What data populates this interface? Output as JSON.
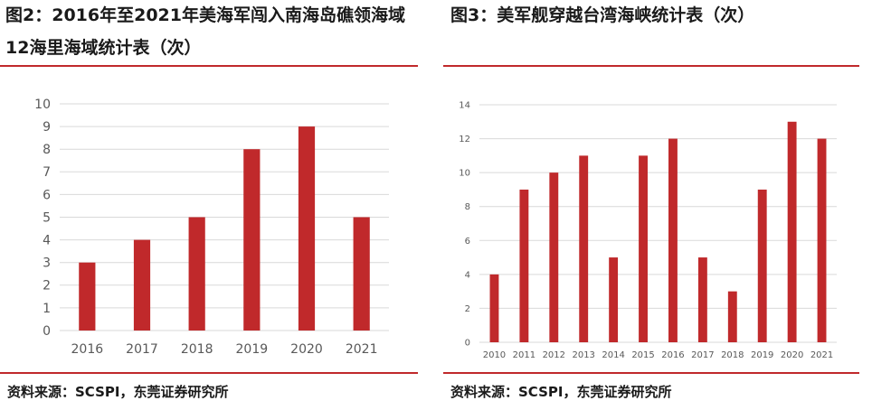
{
  "colors": {
    "accent": "#c0292b",
    "bar": "#c0292b",
    "grid": "#d9d9d9",
    "axis_text": "#595959"
  },
  "left": {
    "title_line1": "图2：2016年至2021年美海军闯入南海岛礁领海域",
    "title_line2": "12海里海域统计表（次）",
    "source": "资料来源：SCSPI，东莞证券研究所"
  },
  "right": {
    "title": "图3：美军舰穿越台湾海峡统计表（次）",
    "source": "资料来源：SCSPI，东莞证券研究所"
  },
  "chart_data": [
    {
      "type": "bar",
      "title": "2016年至2021年美海军闯入南海岛礁领海域12海里海域统计表（次）",
      "categories": [
        "2016",
        "2017",
        "2018",
        "2019",
        "2020",
        "2021"
      ],
      "values": [
        3,
        4,
        5,
        8,
        9,
        5
      ],
      "ylim": [
        0,
        10
      ],
      "yticks": [
        0,
        1,
        2,
        3,
        4,
        5,
        6,
        7,
        8,
        9,
        10
      ],
      "grid": true,
      "xlabel": "",
      "ylabel": ""
    },
    {
      "type": "bar",
      "title": "美军舰穿越台湾海峡统计表（次）",
      "categories": [
        "2010",
        "2011",
        "2012",
        "2013",
        "2014",
        "2015",
        "2016",
        "2017",
        "2018",
        "2019",
        "2020",
        "2021"
      ],
      "values": [
        4,
        9,
        10,
        11,
        5,
        11,
        12,
        5,
        3,
        9,
        13,
        12
      ],
      "ylim": [
        0,
        14
      ],
      "yticks": [
        0,
        2,
        4,
        6,
        8,
        10,
        12,
        14
      ],
      "grid": true,
      "xlabel": "",
      "ylabel": ""
    }
  ]
}
